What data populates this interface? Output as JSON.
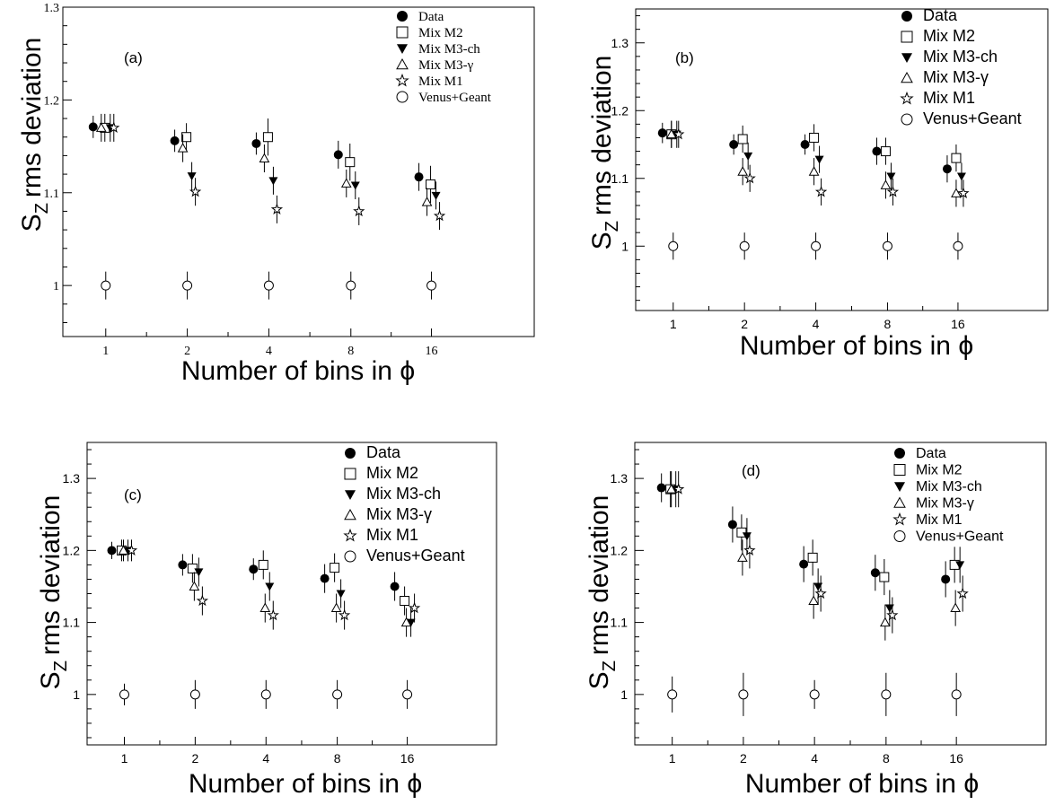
{
  "colors": {
    "ink": "#000000",
    "background": "#ffffff"
  },
  "chart_data": [
    {
      "type": "scatter",
      "panel_label": "(a)",
      "xlabel": "Number of bins in  ϕ",
      "ylabel": "S",
      "ylabel_sub": "Z",
      "ylabel_rest": "rms deviation",
      "categories": [
        "1",
        "2",
        "4",
        "8",
        "16"
      ],
      "ylim": [
        0.945,
        1.3
      ],
      "yticks": [
        "1",
        "1.1",
        "1.2",
        "1.3"
      ],
      "legend": [
        "Data",
        "Mix M2",
        "Mix M3-ch",
        "Mix M3-γ",
        "Mix M1",
        "Venus+Geant"
      ],
      "series": [
        {
          "name": "Data",
          "marker": "filled-circle",
          "values": [
            1.171,
            1.156,
            1.153,
            1.141,
            1.117
          ],
          "errors": [
            0.012,
            0.012,
            0.012,
            0.015,
            0.015
          ]
        },
        {
          "name": "Mix M2",
          "marker": "open-square",
          "values": [
            1.17,
            1.16,
            1.16,
            1.133,
            1.109
          ],
          "errors": [
            0.015,
            0.015,
            0.02,
            0.02,
            0.02
          ]
        },
        {
          "name": "Mix M3-ch",
          "marker": "filled-triangle-down",
          "values": [
            1.17,
            1.118,
            1.113,
            1.108,
            1.097
          ],
          "errors": [
            0.015,
            0.015,
            0.015,
            0.015,
            0.015
          ]
        },
        {
          "name": "Mix M3-γ",
          "marker": "open-triangle-up",
          "values": [
            1.17,
            1.148,
            1.137,
            1.11,
            1.09
          ],
          "errors": [
            0.015,
            0.015,
            0.015,
            0.015,
            0.015
          ]
        },
        {
          "name": "Mix M1",
          "marker": "open-star",
          "values": [
            1.17,
            1.101,
            1.082,
            1.08,
            1.075
          ],
          "errors": [
            0.015,
            0.015,
            0.015,
            0.015,
            0.015
          ]
        },
        {
          "name": "Venus+Geant",
          "marker": "open-circle",
          "values": [
            1.0,
            1.0,
            1.0,
            1.0,
            1.0
          ],
          "errors": [
            0.015,
            0.015,
            0.015,
            0.015,
            0.015
          ]
        }
      ]
    },
    {
      "type": "scatter",
      "panel_label": "(b)",
      "xlabel": "Number of bins in ϕ",
      "ylabel": "S",
      "ylabel_sub": "Z",
      "ylabel_rest": "rms deviation",
      "categories": [
        "1",
        "2",
        "4",
        "8",
        "16"
      ],
      "ylim": [
        0.905,
        1.35
      ],
      "yticks": [
        "1",
        "1.1",
        "1.2",
        "1.3"
      ],
      "legend": [
        "Data",
        "Mix M2",
        "Mix M3-ch",
        "Mix M3-γ",
        "Mix M1",
        "Venus+Geant"
      ],
      "series": [
        {
          "name": "Data",
          "marker": "filled-circle",
          "values": [
            1.167,
            1.15,
            1.15,
            1.14,
            1.114
          ],
          "errors": [
            0.015,
            0.015,
            0.015,
            0.02,
            0.02
          ]
        },
        {
          "name": "Mix M2",
          "marker": "open-square",
          "values": [
            1.165,
            1.158,
            1.16,
            1.14,
            1.13
          ],
          "errors": [
            0.02,
            0.02,
            0.02,
            0.02,
            0.02
          ]
        },
        {
          "name": "Mix M3-ch",
          "marker": "filled-triangle-down",
          "values": [
            1.165,
            1.133,
            1.128,
            1.103,
            1.103
          ],
          "errors": [
            0.02,
            0.02,
            0.02,
            0.02,
            0.02
          ]
        },
        {
          "name": "Mix M3-γ",
          "marker": "open-triangle-up",
          "values": [
            1.165,
            1.11,
            1.11,
            1.09,
            1.078
          ],
          "errors": [
            0.02,
            0.02,
            0.02,
            0.02,
            0.02
          ]
        },
        {
          "name": "Mix M1",
          "marker": "open-star",
          "values": [
            1.165,
            1.1,
            1.08,
            1.08,
            1.078
          ],
          "errors": [
            0.02,
            0.02,
            0.02,
            0.02,
            0.02
          ]
        },
        {
          "name": "Venus+Geant",
          "marker": "open-circle",
          "values": [
            1.0,
            1.0,
            1.0,
            1.0,
            1.0
          ],
          "errors": [
            0.02,
            0.02,
            0.02,
            0.02,
            0.02
          ]
        }
      ]
    },
    {
      "type": "scatter",
      "panel_label": "(c)",
      "xlabel": "Number of bins in ϕ",
      "ylabel": "S",
      "ylabel_sub": "Z",
      "ylabel_rest": "rms deviation",
      "categories": [
        "1",
        "2",
        "4",
        "8",
        "16"
      ],
      "ylim": [
        0.93,
        1.35
      ],
      "yticks": [
        "1",
        "1.1",
        "1.2",
        "1.3"
      ],
      "legend": [
        "Data",
        "Mix M2",
        "Mix M3-ch",
        "Mix M3-γ",
        "Mix M1",
        "Venus+Geant"
      ],
      "series": [
        {
          "name": "Data",
          "marker": "filled-circle",
          "values": [
            1.2,
            1.18,
            1.174,
            1.161,
            1.15
          ],
          "errors": [
            0.012,
            0.015,
            0.015,
            0.02,
            0.02
          ]
        },
        {
          "name": "Mix M2",
          "marker": "open-square",
          "values": [
            1.2,
            1.175,
            1.18,
            1.176,
            1.13
          ],
          "errors": [
            0.015,
            0.02,
            0.02,
            0.02,
            0.02
          ]
        },
        {
          "name": "Mix M3-ch",
          "marker": "filled-triangle-down",
          "values": [
            1.2,
            1.17,
            1.15,
            1.14,
            1.1
          ],
          "errors": [
            0.015,
            0.02,
            0.02,
            0.02,
            0.02
          ]
        },
        {
          "name": "Mix M3-γ",
          "marker": "open-triangle-up",
          "values": [
            1.2,
            1.15,
            1.12,
            1.12,
            1.1
          ],
          "errors": [
            0.015,
            0.02,
            0.02,
            0.02,
            0.02
          ]
        },
        {
          "name": "Mix M1",
          "marker": "open-star",
          "values": [
            1.2,
            1.13,
            1.11,
            1.11,
            1.12
          ],
          "errors": [
            0.015,
            0.02,
            0.02,
            0.02,
            0.02
          ]
        },
        {
          "name": "Venus+Geant",
          "marker": "open-circle",
          "values": [
            1.0,
            1.0,
            1.0,
            1.0,
            1.0
          ],
          "errors": [
            0.015,
            0.02,
            0.02,
            0.02,
            0.02
          ]
        }
      ]
    },
    {
      "type": "scatter",
      "panel_label": "(d)",
      "xlabel": "Number of bins in ϕ",
      "ylabel": "S",
      "ylabel_sub": "Z",
      "ylabel_rest": "rms deviation",
      "categories": [
        "1",
        "2",
        "4",
        "8",
        "16"
      ],
      "ylim": [
        0.93,
        1.35
      ],
      "yticks": [
        "1",
        "1.1",
        "1.2",
        "1.3"
      ],
      "legend": [
        "Data",
        "Mix M2",
        "Mix M3-ch",
        "Mix M3-γ",
        "Mix M1",
        "Venus+Geant"
      ],
      "series": [
        {
          "name": "Data",
          "marker": "filled-circle",
          "values": [
            1.287,
            1.236,
            1.181,
            1.169,
            1.16
          ],
          "errors": [
            0.02,
            0.025,
            0.025,
            0.025,
            0.025
          ]
        },
        {
          "name": "Mix M2",
          "marker": "open-square",
          "values": [
            1.285,
            1.225,
            1.19,
            1.163,
            1.18
          ],
          "errors": [
            0.025,
            0.025,
            0.025,
            0.025,
            0.025
          ]
        },
        {
          "name": "Mix M3-ch",
          "marker": "filled-triangle-down",
          "values": [
            1.285,
            1.22,
            1.15,
            1.12,
            1.18
          ],
          "errors": [
            0.025,
            0.025,
            0.025,
            0.025,
            0.025
          ]
        },
        {
          "name": "Mix M3-γ",
          "marker": "open-triangle-up",
          "values": [
            1.285,
            1.19,
            1.13,
            1.1,
            1.12
          ],
          "errors": [
            0.025,
            0.025,
            0.025,
            0.025,
            0.025
          ]
        },
        {
          "name": "Mix M1",
          "marker": "open-star",
          "values": [
            1.285,
            1.2,
            1.14,
            1.11,
            1.14
          ],
          "errors": [
            0.025,
            0.025,
            0.025,
            0.025,
            0.025
          ]
        },
        {
          "name": "Venus+Geant",
          "marker": "open-circle",
          "values": [
            1.0,
            1.0,
            1.0,
            1.0,
            1.0
          ],
          "errors": [
            0.025,
            0.03,
            0.02,
            0.03,
            0.03
          ]
        }
      ]
    }
  ]
}
